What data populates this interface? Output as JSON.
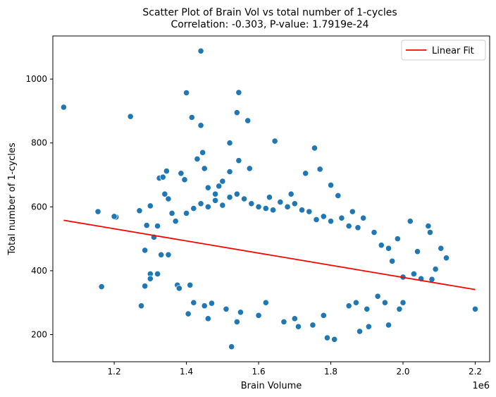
{
  "chart_data": {
    "type": "scatter",
    "title": "Scatter Plot of Brain Vol vs total number of 1-cycles",
    "subtitle": "Correlation: -0.303, P-value: 1.7919e-24",
    "xlabel": "Brain Volume",
    "ylabel": "Total number of 1-cycles",
    "x_offset_label": "1e6",
    "xlim": [
      1.03,
      2.24
    ],
    "ylim": [
      115,
      1135
    ],
    "xticks": [
      1.2,
      1.4,
      1.6,
      1.8,
      2.0,
      2.2
    ],
    "xtick_labels": [
      "1.2",
      "1.4",
      "1.6",
      "1.8",
      "2.0",
      "2.2"
    ],
    "yticks": [
      200,
      400,
      600,
      800,
      1000
    ],
    "ytick_labels": [
      "200",
      "400",
      "600",
      "800",
      "1000"
    ],
    "grid": false,
    "legend": {
      "position": "top-right",
      "entries": [
        {
          "label": "Linear Fit",
          "color": "#ff0000"
        }
      ]
    },
    "colors": {
      "points": "#1f77b4",
      "fit_line": "#ff0000"
    },
    "fit_line": {
      "x": [
        1.06,
        2.2
      ],
      "y": [
        558,
        341
      ]
    },
    "series": [
      {
        "name": "",
        "points": [
          [
            1.06,
            912
          ],
          [
            1.155,
            585
          ],
          [
            1.165,
            350
          ],
          [
            1.205,
            568
          ],
          [
            1.245,
            883
          ],
          [
            1.27,
            588
          ],
          [
            1.275,
            290
          ],
          [
            1.285,
            464
          ],
          [
            1.29,
            542
          ],
          [
            1.3,
            603
          ],
          [
            1.3,
            390
          ],
          [
            1.31,
            505
          ],
          [
            1.32,
            540
          ],
          [
            1.325,
            690
          ],
          [
            1.335,
            693
          ],
          [
            1.345,
            712
          ],
          [
            1.34,
            640
          ],
          [
            1.35,
            625
          ],
          [
            1.36,
            580
          ],
          [
            1.37,
            555
          ],
          [
            1.385,
            705
          ],
          [
            1.395,
            685
          ],
          [
            1.4,
            957
          ],
          [
            1.405,
            265
          ],
          [
            1.415,
            880
          ],
          [
            1.43,
            750
          ],
          [
            1.44,
            855
          ],
          [
            1.44,
            1088
          ],
          [
            1.445,
            770
          ],
          [
            1.45,
            720
          ],
          [
            1.46,
            660
          ],
          [
            1.47,
            298
          ],
          [
            1.48,
            640
          ],
          [
            1.49,
            665
          ],
          [
            1.5,
            680
          ],
          [
            1.52,
            710
          ],
          [
            1.52,
            800
          ],
          [
            1.525,
            162
          ],
          [
            1.54,
            895
          ],
          [
            1.545,
            958
          ],
          [
            1.545,
            745
          ],
          [
            1.57,
            870
          ],
          [
            1.575,
            720
          ],
          [
            1.63,
            630
          ],
          [
            1.645,
            806
          ],
          [
            1.69,
            640
          ],
          [
            1.71,
            225
          ],
          [
            1.73,
            705
          ],
          [
            1.755,
            784
          ],
          [
            1.77,
            718
          ],
          [
            1.79,
            190
          ],
          [
            1.8,
            668
          ],
          [
            1.81,
            185
          ],
          [
            1.82,
            635
          ],
          [
            1.86,
            585
          ],
          [
            1.88,
            210
          ],
          [
            1.905,
            225
          ],
          [
            1.96,
            230
          ],
          [
            1.985,
            500
          ],
          [
            2.02,
            555
          ],
          [
            2.04,
            460
          ],
          [
            2.07,
            540
          ],
          [
            2.075,
            520
          ],
          [
            2.105,
            470
          ],
          [
            2.12,
            440
          ],
          [
            2.2,
            280
          ],
          [
            2.09,
            405
          ],
          [
            2.08,
            373
          ],
          [
            1.2,
            570
          ],
          [
            1.285,
            352
          ],
          [
            1.3,
            375
          ],
          [
            1.32,
            390
          ],
          [
            1.33,
            450
          ],
          [
            1.35,
            450
          ],
          [
            1.375,
            355
          ],
          [
            1.38,
            345
          ],
          [
            1.41,
            355
          ],
          [
            1.42,
            300
          ],
          [
            1.45,
            290
          ],
          [
            1.46,
            250
          ],
          [
            1.51,
            280
          ],
          [
            1.54,
            240
          ],
          [
            1.55,
            270
          ],
          [
            1.6,
            260
          ],
          [
            1.62,
            300
          ],
          [
            1.67,
            240
          ],
          [
            1.7,
            250
          ],
          [
            1.75,
            230
          ],
          [
            1.78,
            260
          ],
          [
            1.85,
            290
          ],
          [
            1.87,
            300
          ],
          [
            1.9,
            280
          ],
          [
            1.93,
            320
          ],
          [
            1.95,
            300
          ],
          [
            1.99,
            280
          ],
          [
            2.0,
            300
          ],
          [
            2.03,
            390
          ],
          [
            2.05,
            375
          ],
          [
            2.0,
            380
          ],
          [
            1.97,
            430
          ],
          [
            1.96,
            470
          ],
          [
            1.94,
            480
          ],
          [
            1.92,
            520
          ],
          [
            1.89,
            565
          ],
          [
            1.875,
            535
          ],
          [
            1.85,
            540
          ],
          [
            1.83,
            565
          ],
          [
            1.8,
            555
          ],
          [
            1.78,
            570
          ],
          [
            1.76,
            560
          ],
          [
            1.74,
            585
          ],
          [
            1.72,
            590
          ],
          [
            1.7,
            610
          ],
          [
            1.68,
            600
          ],
          [
            1.66,
            615
          ],
          [
            1.64,
            590
          ],
          [
            1.62,
            595
          ],
          [
            1.6,
            600
          ],
          [
            1.58,
            610
          ],
          [
            1.56,
            625
          ],
          [
            1.54,
            640
          ],
          [
            1.52,
            630
          ],
          [
            1.5,
            605
          ],
          [
            1.48,
            620
          ],
          [
            1.46,
            600
          ],
          [
            1.44,
            610
          ],
          [
            1.42,
            595
          ],
          [
            1.4,
            580
          ]
        ]
      }
    ]
  }
}
